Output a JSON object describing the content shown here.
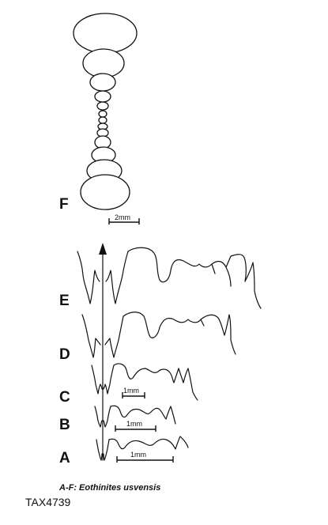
{
  "figure": {
    "labels": {
      "F": "F",
      "E": "E",
      "D": "D",
      "C": "C",
      "B": "B",
      "A": "A"
    },
    "scale_bars": {
      "F": "2mm",
      "C": "1mm",
      "B": "1mm",
      "A": "1mm"
    },
    "caption": "A-F: Eothinites usvensis",
    "specimen_id": "TAX4739"
  }
}
